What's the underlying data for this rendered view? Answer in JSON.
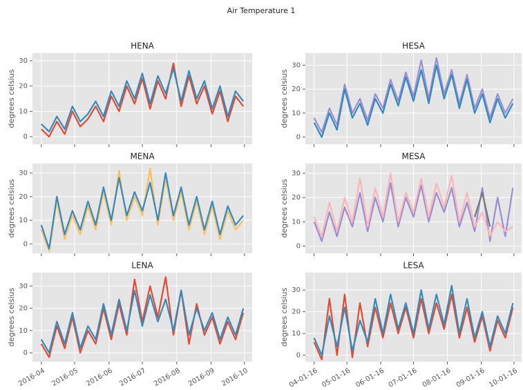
{
  "title": "Air Temperature 1",
  "chart_data": [
    {
      "type": "line",
      "title": "HENA",
      "ylabel": "degrees celsius",
      "x": [
        "2016-04-01",
        "2016-04-08",
        "2016-04-15",
        "2016-04-22",
        "2016-04-29",
        "2016-05-06",
        "2016-05-13",
        "2016-05-20",
        "2016-05-27",
        "2016-06-03",
        "2016-06-10",
        "2016-06-17",
        "2016-06-24",
        "2016-07-01",
        "2016-07-08",
        "2016-07-15",
        "2016-07-22",
        "2016-07-29",
        "2016-08-05",
        "2016-08-12",
        "2016-08-19",
        "2016-08-26",
        "2016-09-02",
        "2016-09-09",
        "2016-09-16",
        "2016-09-23",
        "2016-09-30"
      ],
      "series": [
        {
          "color": "#E24A33",
          "values": [
            3,
            0,
            6,
            1,
            10,
            4,
            7,
            12,
            6,
            16,
            10,
            20,
            13,
            23,
            11,
            22,
            15,
            29,
            12,
            24,
            13,
            20,
            9,
            18,
            6,
            16,
            12
          ]
        },
        {
          "color": "#348ABD",
          "values": [
            5,
            2,
            8,
            3,
            12,
            6,
            9,
            14,
            8,
            18,
            12,
            22,
            15,
            25,
            13,
            24,
            17,
            27,
            14,
            26,
            15,
            22,
            11,
            20,
            8,
            18,
            14
          ]
        }
      ],
      "xlim": [
        "2016-03-24",
        "2016-10-08"
      ],
      "ylim": [
        -3,
        33
      ],
      "yticks": [
        0,
        10,
        20,
        30
      ],
      "xticks": [
        "2016-04-01",
        "2016-05-01",
        "2016-06-01",
        "2016-07-01",
        "2016-08-01",
        "2016-09-01",
        "2016-10-01"
      ],
      "grid": true
    },
    {
      "type": "line",
      "title": "HESA",
      "ylabel": "degrees celsius",
      "x": [
        "2016-04-01",
        "2016-04-08",
        "2016-04-15",
        "2016-04-22",
        "2016-04-29",
        "2016-05-06",
        "2016-05-13",
        "2016-05-20",
        "2016-05-27",
        "2016-06-03",
        "2016-06-10",
        "2016-06-17",
        "2016-06-24",
        "2016-07-01",
        "2016-07-08",
        "2016-07-15",
        "2016-07-22",
        "2016-07-29",
        "2016-08-05",
        "2016-08-12",
        "2016-08-19",
        "2016-08-26",
        "2016-09-02",
        "2016-09-09",
        "2016-09-16",
        "2016-09-23",
        "2016-09-30"
      ],
      "series": [
        {
          "color": "#988ED5",
          "values": [
            8,
            2,
            12,
            5,
            22,
            10,
            16,
            7,
            18,
            12,
            24,
            15,
            27,
            17,
            32,
            16,
            33,
            18,
            28,
            14,
            26,
            12,
            20,
            8,
            18,
            10,
            16
          ]
        },
        {
          "color": "#348ABD",
          "values": [
            6,
            0,
            10,
            3,
            20,
            8,
            14,
            5,
            16,
            10,
            22,
            13,
            25,
            15,
            28,
            14,
            30,
            16,
            26,
            12,
            24,
            10,
            18,
            6,
            16,
            8,
            14
          ]
        }
      ],
      "xlim": [
        "2016-03-24",
        "2016-10-08"
      ],
      "ylim": [
        -3,
        35
      ],
      "yticks": [
        0,
        10,
        20,
        30
      ],
      "xticks": [
        "2016-04-01",
        "2016-05-01",
        "2016-06-01",
        "2016-07-01",
        "2016-08-01",
        "2016-09-01",
        "2016-10-01"
      ],
      "grid": true
    },
    {
      "type": "line",
      "title": "MENA",
      "ylabel": "degrees celsius",
      "x": [
        "2016-04-01",
        "2016-04-08",
        "2016-04-15",
        "2016-04-22",
        "2016-04-29",
        "2016-05-06",
        "2016-05-13",
        "2016-05-20",
        "2016-05-27",
        "2016-06-03",
        "2016-06-10",
        "2016-06-17",
        "2016-06-24",
        "2016-07-01",
        "2016-07-08",
        "2016-07-15",
        "2016-07-22",
        "2016-07-29",
        "2016-08-05",
        "2016-08-12",
        "2016-08-19",
        "2016-08-26",
        "2016-09-02",
        "2016-09-09",
        "2016-09-16",
        "2016-09-23",
        "2016-09-30"
      ],
      "series": [
        {
          "color": "#FBC15E",
          "values": [
            6,
            -3,
            18,
            2,
            12,
            4,
            16,
            6,
            22,
            8,
            31,
            10,
            20,
            12,
            32,
            8,
            28,
            10,
            22,
            6,
            18,
            4,
            16,
            2,
            14,
            6,
            10
          ]
        },
        {
          "color": "#348ABD",
          "values": [
            8,
            -2,
            20,
            4,
            14,
            6,
            18,
            8,
            24,
            10,
            28,
            12,
            22,
            14,
            26,
            10,
            30,
            12,
            24,
            8,
            20,
            6,
            18,
            4,
            16,
            8,
            12
          ]
        }
      ],
      "xlim": [
        "2016-03-24",
        "2016-10-08"
      ],
      "ylim": [
        -4,
        34
      ],
      "yticks": [
        0,
        10,
        20,
        30
      ],
      "xticks": [
        "2016-04-01",
        "2016-05-01",
        "2016-06-01",
        "2016-07-01",
        "2016-08-01",
        "2016-09-01",
        "2016-10-01"
      ],
      "grid": true
    },
    {
      "type": "line",
      "title": "MESA",
      "ylabel": "degrees celsius",
      "x": [
        "2016-04-01",
        "2016-04-08",
        "2016-04-15",
        "2016-04-22",
        "2016-04-29",
        "2016-05-06",
        "2016-05-13",
        "2016-05-20",
        "2016-05-27",
        "2016-06-03",
        "2016-06-10",
        "2016-06-17",
        "2016-06-24",
        "2016-07-01",
        "2016-07-08",
        "2016-07-15",
        "2016-07-22",
        "2016-07-29",
        "2016-08-05",
        "2016-08-12",
        "2016-08-19",
        "2016-08-26",
        "2016-09-02",
        "2016-09-09",
        "2016-09-16",
        "2016-09-23",
        "2016-09-30"
      ],
      "series": [
        {
          "color": "#988ED5",
          "values": [
            10,
            2,
            14,
            4,
            16,
            8,
            22,
            6,
            20,
            10,
            26,
            8,
            20,
            12,
            25,
            10,
            22,
            14,
            24,
            8,
            18,
            6,
            24,
            2,
            20,
            4,
            24
          ]
        },
        {
          "color": "#FFB5B8",
          "values": [
            12,
            4,
            18,
            6,
            20,
            10,
            28,
            8,
            24,
            12,
            30,
            10,
            22,
            14,
            28,
            12,
            26,
            16,
            29,
            10,
            22,
            8,
            14,
            4,
            10,
            6,
            8
          ]
        },
        {
          "color": "#777777",
          "values": [
            null,
            null,
            null,
            null,
            null,
            null,
            null,
            null,
            null,
            null,
            null,
            null,
            null,
            null,
            null,
            null,
            null,
            null,
            null,
            null,
            null,
            12,
            22,
            8,
            null,
            null,
            null
          ]
        }
      ],
      "xlim": [
        "2016-03-24",
        "2016-10-08"
      ],
      "ylim": [
        -3,
        34
      ],
      "yticks": [
        0,
        10,
        20,
        30
      ],
      "xticks": [
        "2016-04-01",
        "2016-05-01",
        "2016-06-01",
        "2016-07-01",
        "2016-08-01",
        "2016-09-01",
        "2016-10-01"
      ],
      "grid": true
    },
    {
      "type": "line",
      "title": "LENA",
      "ylabel": "degrees celsius",
      "x": [
        "2016-04-01",
        "2016-04-08",
        "2016-04-15",
        "2016-04-22",
        "2016-04-29",
        "2016-05-06",
        "2016-05-13",
        "2016-05-20",
        "2016-05-27",
        "2016-06-03",
        "2016-06-10",
        "2016-06-17",
        "2016-06-24",
        "2016-07-01",
        "2016-07-08",
        "2016-07-15",
        "2016-07-22",
        "2016-07-29",
        "2016-08-05",
        "2016-08-12",
        "2016-08-19",
        "2016-08-26",
        "2016-09-02",
        "2016-09-09",
        "2016-09-16",
        "2016-09-23",
        "2016-09-30"
      ],
      "series": [
        {
          "color": "#E24A33",
          "values": [
            4,
            -2,
            12,
            2,
            16,
            0,
            10,
            4,
            20,
            6,
            22,
            8,
            33,
            14,
            30,
            16,
            34,
            8,
            28,
            4,
            22,
            8,
            16,
            4,
            14,
            6,
            18
          ]
        },
        {
          "color": "#348ABD",
          "values": [
            6,
            0,
            14,
            4,
            18,
            2,
            12,
            6,
            22,
            8,
            24,
            10,
            28,
            12,
            26,
            14,
            24,
            10,
            28,
            8,
            20,
            10,
            18,
            6,
            16,
            8,
            20
          ]
        }
      ],
      "xlim": [
        "2016-03-24",
        "2016-10-08"
      ],
      "ylim": [
        -4,
        36
      ],
      "yticks": [
        0,
        10,
        20,
        30
      ],
      "xticks": [
        {
          "value": "2016-04-01",
          "label": "2016-04"
        },
        {
          "value": "2016-05-01",
          "label": "2016-05"
        },
        {
          "value": "2016-06-01",
          "label": "2016-06"
        },
        {
          "value": "2016-07-01",
          "label": "2016-07"
        },
        {
          "value": "2016-08-01",
          "label": "2016-08"
        },
        {
          "value": "2016-09-01",
          "label": "2016-09"
        },
        {
          "value": "2016-10-01",
          "label": "2016-10"
        }
      ],
      "grid": true
    },
    {
      "type": "line",
      "title": "LESA",
      "ylabel": "degrees celsius",
      "x": [
        "2016-04-01",
        "2016-04-08",
        "2016-04-15",
        "2016-04-22",
        "2016-04-29",
        "2016-05-06",
        "2016-05-13",
        "2016-05-20",
        "2016-05-27",
        "2016-06-03",
        "2016-06-10",
        "2016-06-17",
        "2016-06-24",
        "2016-07-01",
        "2016-07-08",
        "2016-07-15",
        "2016-07-22",
        "2016-07-29",
        "2016-08-05",
        "2016-08-12",
        "2016-08-19",
        "2016-08-26",
        "2016-09-02",
        "2016-09-09",
        "2016-09-16",
        "2016-09-23",
        "2016-09-30"
      ],
      "series": [
        {
          "color": "#E24A33",
          "values": [
            6,
            -2,
            26,
            0,
            28,
            -1,
            24,
            4,
            22,
            8,
            24,
            10,
            22,
            8,
            26,
            10,
            24,
            12,
            28,
            8,
            22,
            6,
            18,
            2,
            16,
            8,
            22
          ]
        },
        {
          "color": "#348ABD",
          "values": [
            8,
            0,
            18,
            4,
            22,
            2,
            16,
            6,
            26,
            10,
            28,
            12,
            24,
            10,
            30,
            12,
            28,
            14,
            32,
            10,
            26,
            8,
            20,
            4,
            18,
            10,
            24
          ]
        }
      ],
      "xlim": [
        "2016-03-24",
        "2016-10-08"
      ],
      "ylim": [
        -3,
        38
      ],
      "yticks": [
        0,
        10,
        20,
        30
      ],
      "xticks": [
        {
          "value": "2016-04-01",
          "label": "04-01-16"
        },
        {
          "value": "2016-05-01",
          "label": "05-01-16"
        },
        {
          "value": "2016-06-01",
          "label": "06-01-16"
        },
        {
          "value": "2016-07-01",
          "label": "07-01-16"
        },
        {
          "value": "2016-08-01",
          "label": "08-01-16"
        },
        {
          "value": "2016-09-01",
          "label": "09-01-16"
        },
        {
          "value": "2016-10-01",
          "label": "10-01-16"
        }
      ],
      "grid": true
    }
  ]
}
